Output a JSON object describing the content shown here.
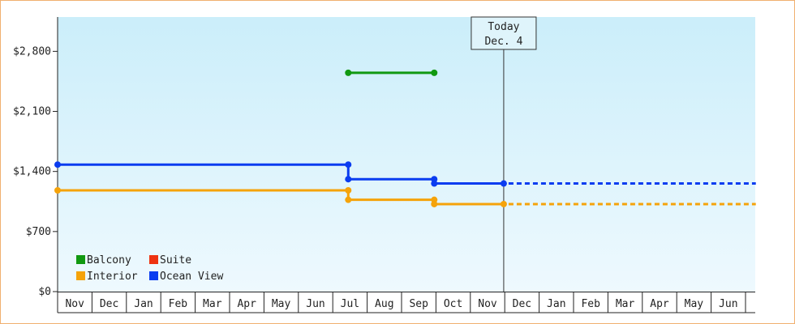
{
  "chart_data": {
    "type": "line",
    "step": true,
    "y_axis": {
      "min": 0,
      "max": 3200,
      "ticks": [
        {
          "value": 0,
          "label": "$0"
        },
        {
          "value": 700,
          "label": "$700"
        },
        {
          "value": 1400,
          "label": "$1,400"
        },
        {
          "value": 2100,
          "label": "$2,100"
        },
        {
          "value": 2800,
          "label": "$2,800"
        }
      ]
    },
    "x_axis": {
      "range": [
        0,
        20
      ],
      "months": [
        "Nov",
        "Dec",
        "Jan",
        "Feb",
        "Mar",
        "Apr",
        "May",
        "Jun",
        "Jul",
        "Aug",
        "Sep",
        "Oct",
        "Nov",
        "Dec",
        "Jan",
        "Feb",
        "Mar",
        "Apr",
        "May",
        "Jun"
      ]
    },
    "today": {
      "x": 12.97,
      "line1": "Today",
      "line2": "Dec. 4"
    },
    "projection_end_x": 20.3,
    "series": [
      {
        "name": "Balcony",
        "color": "#119911",
        "points": [
          [
            8.45,
            2550
          ],
          [
            10.95,
            2550
          ]
        ]
      },
      {
        "name": "Suite",
        "color": "#ee3311",
        "points": []
      },
      {
        "name": "Interior",
        "color": "#f5a30a",
        "points": [
          [
            0,
            1180
          ],
          [
            8.45,
            1180
          ],
          [
            8.45,
            1070
          ],
          [
            10.95,
            1070
          ],
          [
            10.95,
            1020
          ],
          [
            12.97,
            1020
          ]
        ]
      },
      {
        "name": "Ocean View",
        "color": "#0a3cf0",
        "points": [
          [
            0,
            1480
          ],
          [
            8.45,
            1480
          ],
          [
            8.45,
            1310
          ],
          [
            10.95,
            1310
          ],
          [
            10.95,
            1260
          ],
          [
            12.97,
            1260
          ]
        ]
      }
    ],
    "legend": {
      "position": "bottom-left"
    },
    "grid": false,
    "background": {
      "top": "#cbeefa",
      "bottom": "#eef9fe"
    }
  }
}
